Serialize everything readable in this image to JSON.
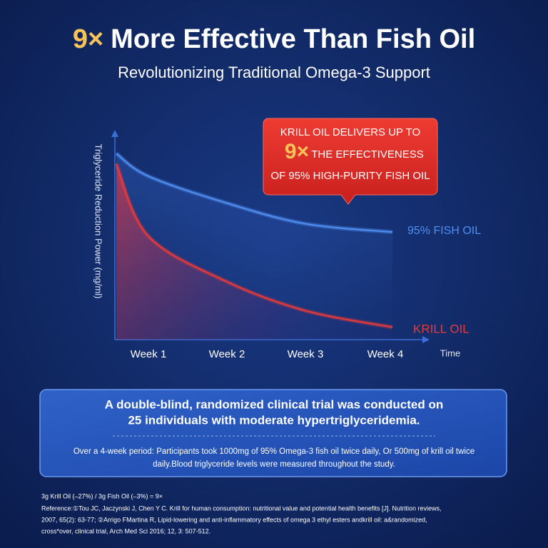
{
  "header": {
    "title_highlight": "9×",
    "title": "More Effective Than Fish Oil",
    "subtitle": "Revolutionizing Traditional Omega-3 Support"
  },
  "chart_data": {
    "type": "line",
    "y_label": "Triglyceride Reduction Power  (mg/ml)",
    "x_label": "Time",
    "categories": [
      null,
      "Week 1",
      "Week 2",
      "Week 3",
      "Week 4"
    ],
    "ylim": [
      0,
      100
    ],
    "series": [
      {
        "name": "95% FISH OIL",
        "color": "#4f8ef0",
        "values": [
          90,
          79,
          66,
          56,
          52
        ]
      },
      {
        "name": "KRILL OIL",
        "color": "#e63a3a",
        "values": [
          85,
          50,
          28,
          14,
          6
        ]
      }
    ],
    "callout": {
      "line1": "KRILL OIL DELIVERS UP TO",
      "highlight": "9×",
      "line2": "THE EFFECTIVENESS",
      "line3": "OF 95% HIGH-PURITY FISH OIL"
    }
  },
  "panel": {
    "heading": [
      "A double-blind, randomized clinical trial was conducted on",
      "25 individuals with moderate hypertriglyceridemia."
    ],
    "body": [
      "Over a 4-week period: Participants took 1000mg of 95% Omega-3 fish oil twice daily, Or 500mg of krill oil twice",
      "daily.Blood triglyceride levels were measured throughout the study."
    ]
  },
  "references": [
    "3g Krill Oil (–27%) / 3g Fish Oil (–3%) = 9×",
    "Reference:①Tou JC, Jaczynski J, Chen Y C. Krill for human consumption: nutritional value and potential health benefits [J]. Nutrition reviews,",
    "2007, 65(2): 63-77; ②Arrigo FMartina R, Lipid-lowering and anti-inflammatory effects of omega 3 ethyl esters andkrill oil: a&randomized,",
    "cross*over, clinical trial, Arch Med Sci 2016; 12, 3: 507-512."
  ]
}
